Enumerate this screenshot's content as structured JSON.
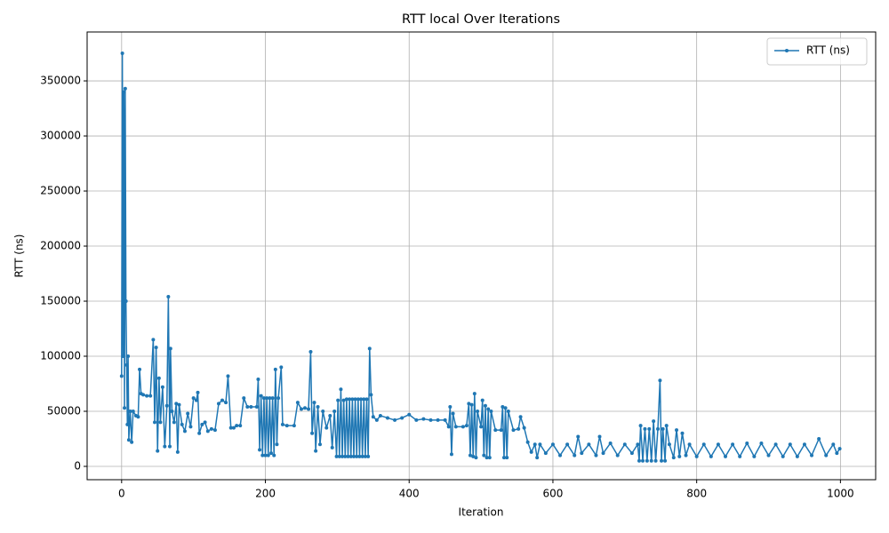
{
  "chart_data": {
    "type": "line",
    "title": "RTT local Over Iterations",
    "x_label": "Iteration",
    "y_label": "RTT (ns)",
    "x": [
      0,
      1,
      2,
      3,
      4,
      5,
      6,
      7,
      8,
      9,
      10,
      12,
      14,
      16,
      20,
      23,
      25,
      27,
      30,
      35,
      40,
      44,
      46,
      48,
      50,
      52,
      54,
      57,
      60,
      63,
      65,
      67,
      68,
      70,
      73,
      76,
      78,
      80,
      84,
      88,
      92,
      96,
      100,
      104,
      106,
      108,
      112,
      116,
      120,
      125,
      130,
      135,
      140,
      145,
      148,
      152,
      156,
      160,
      165,
      170,
      175,
      180,
      188,
      190,
      192,
      194,
      196,
      198,
      200,
      202,
      204,
      206,
      208,
      210,
      212,
      214,
      216,
      218,
      222,
      224,
      230,
      240,
      245,
      250,
      255,
      260,
      263,
      265,
      268,
      270,
      273,
      276,
      280,
      285,
      290,
      293,
      296,
      299,
      301,
      303,
      305,
      307,
      309,
      311,
      313,
      315,
      317,
      319,
      321,
      323,
      325,
      327,
      329,
      331,
      333,
      335,
      337,
      339,
      341,
      343,
      345,
      347,
      350,
      355,
      360,
      370,
      380,
      390,
      400,
      410,
      420,
      430,
      440,
      450,
      455,
      457,
      459,
      461,
      465,
      475,
      480,
      483,
      485,
      487,
      489,
      491,
      493,
      495,
      500,
      502,
      504,
      506,
      508,
      510,
      512,
      514,
      520,
      528,
      530,
      532,
      534,
      536,
      538,
      545,
      552,
      555,
      560,
      565,
      570,
      575,
      578,
      582,
      590,
      600,
      610,
      620,
      630,
      635,
      640,
      650,
      660,
      665,
      670,
      680,
      690,
      700,
      710,
      718,
      720,
      722,
      725,
      728,
      731,
      734,
      737,
      740,
      743,
      746,
      749,
      751,
      753,
      756,
      758,
      762,
      768,
      772,
      776,
      780,
      785,
      790,
      800,
      810,
      820,
      830,
      840,
      850,
      860,
      870,
      880,
      890,
      900,
      910,
      920,
      930,
      940,
      950,
      960,
      970,
      980,
      990,
      995,
      999
    ],
    "series": [
      {
        "name": "RTT (ns)",
        "color": "#1f77b4",
        "values": [
          82000,
          375000,
          100000,
          340000,
          53000,
          343000,
          150000,
          92000,
          38000,
          100000,
          24000,
          50000,
          22000,
          50000,
          46000,
          45000,
          88000,
          66000,
          65000,
          64000,
          64000,
          115000,
          40000,
          108000,
          14000,
          80000,
          40000,
          72000,
          18000,
          55000,
          154000,
          18000,
          107000,
          50000,
          40000,
          57000,
          13000,
          56000,
          38000,
          32000,
          48000,
          36000,
          62000,
          60000,
          67000,
          30000,
          38000,
          40000,
          32000,
          34000,
          33000,
          57000,
          60000,
          58000,
          82000,
          35000,
          35000,
          37000,
          37000,
          62000,
          54000,
          54000,
          54000,
          79000,
          15000,
          64000,
          10000,
          62000,
          10000,
          62000,
          10000,
          62000,
          12000,
          62000,
          10000,
          88000,
          20000,
          62000,
          90000,
          38000,
          37000,
          37000,
          58000,
          52000,
          53000,
          52000,
          104000,
          30000,
          58000,
          14000,
          54000,
          20000,
          50000,
          35000,
          46000,
          17000,
          50000,
          9000,
          60000,
          9000,
          70000,
          9000,
          60000,
          9000,
          61000,
          9000,
          61000,
          9000,
          61000,
          9000,
          61000,
          9000,
          61000,
          9000,
          61000,
          9000,
          61000,
          9000,
          61000,
          9000,
          107000,
          65000,
          45000,
          42000,
          46000,
          44000,
          42000,
          44000,
          47000,
          42000,
          43000,
          42000,
          42000,
          42000,
          36000,
          54000,
          11000,
          48000,
          36000,
          36000,
          37000,
          57000,
          10000,
          56000,
          9000,
          66000,
          8000,
          50000,
          36000,
          60000,
          10000,
          55000,
          8000,
          52000,
          8000,
          50000,
          33000,
          33000,
          54000,
          8000,
          53000,
          8000,
          50000,
          33000,
          34000,
          45000,
          35000,
          22000,
          13000,
          20000,
          8000,
          20000,
          12000,
          20000,
          10000,
          20000,
          10000,
          27000,
          12000,
          20000,
          10000,
          27000,
          12000,
          21000,
          10000,
          20000,
          12000,
          20000,
          5000,
          37000,
          5000,
          34000,
          5000,
          34000,
          5000,
          41000,
          5000,
          34000,
          78000,
          5000,
          34000,
          5000,
          37000,
          20000,
          8000,
          33000,
          9000,
          30000,
          10000,
          20000,
          9000,
          20000,
          9000,
          20000,
          9000,
          20000,
          9000,
          21000,
          9000,
          21000,
          10000,
          20000,
          9000,
          20000,
          9000,
          20000,
          10000,
          25000,
          10000,
          20000,
          12000,
          16000
        ]
      }
    ],
    "xlim": [
      -48,
      1049
    ],
    "ylim": [
      -12100,
      394400
    ],
    "xticks": [
      0,
      200,
      400,
      600,
      800,
      1000
    ],
    "yticks": [
      0,
      50000,
      100000,
      150000,
      200000,
      250000,
      300000,
      350000
    ],
    "grid": true,
    "legend": "upper right"
  }
}
